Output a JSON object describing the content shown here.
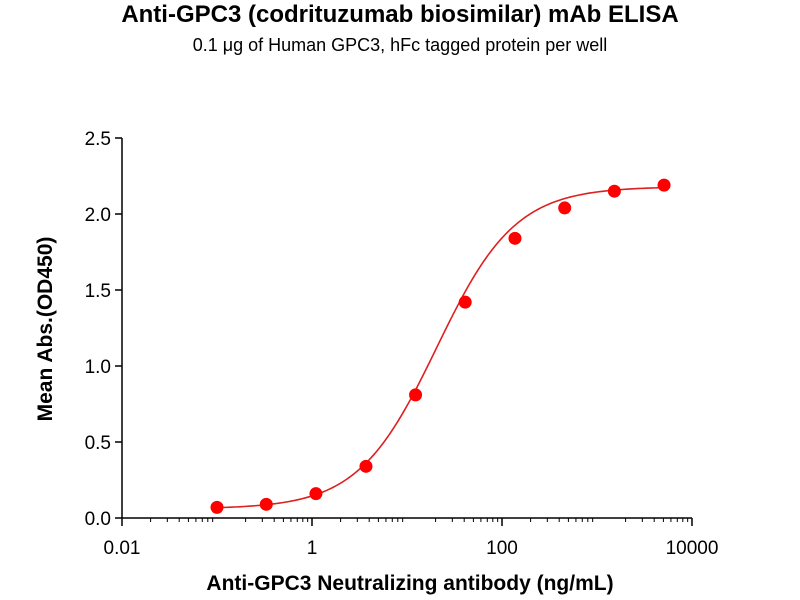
{
  "chart_data": {
    "type": "scatter",
    "title": "Anti-GPC3 (codrituzumab biosimilar) mAb ELISA",
    "subtitle": "0.1 μg of Human GPC3, hFc tagged protein per well",
    "xlabel": "Anti-GPC3 Neutralizing antibody (ng/mL)",
    "ylabel": "Mean Abs.(OD450)",
    "xscale": "log10",
    "xlim": [
      0.01,
      10000
    ],
    "ylim": [
      0,
      2.5
    ],
    "xticks": [
      {
        "value": 0.01,
        "label": "0.01"
      },
      {
        "value": 1,
        "label": "1"
      },
      {
        "value": 100,
        "label": "100"
      },
      {
        "value": 10000,
        "label": "10000"
      }
    ],
    "yticks": [
      {
        "value": 0,
        "label": "0.0"
      },
      {
        "value": 0.5,
        "label": "0.5"
      },
      {
        "value": 1.0,
        "label": "1.0"
      },
      {
        "value": 1.5,
        "label": "1.5"
      },
      {
        "value": 2.0,
        "label": "2.0"
      },
      {
        "value": 2.5,
        "label": "2.5"
      }
    ],
    "series": [
      {
        "name": "Anti-GPC3 (codrituzumab biosimilar) mAb",
        "color": "#ff0000",
        "x": [
          0.1,
          0.33,
          1.1,
          3.7,
          12.3,
          41,
          137,
          457,
          1524,
          5080
        ],
        "y": [
          0.07,
          0.09,
          0.16,
          0.34,
          0.81,
          1.42,
          1.84,
          2.04,
          2.15,
          2.19
        ]
      }
    ],
    "fit_curve": {
      "model": "4PL",
      "color": "#dd2020",
      "bottom": 0.06,
      "top": 2.18,
      "ec50": 20.5,
      "hill": 1.05
    },
    "grid": false,
    "legend": "none"
  }
}
